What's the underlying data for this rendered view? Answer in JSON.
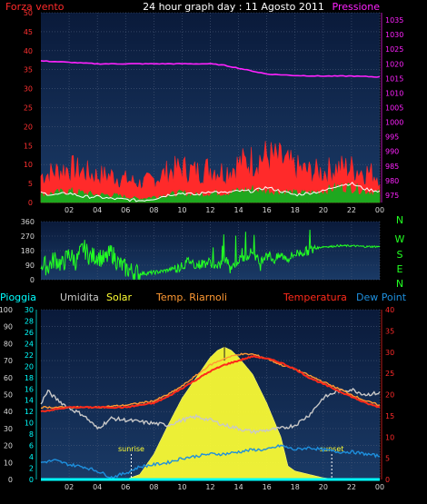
{
  "header": {
    "left_label": "Forza vento",
    "title": "24 hour graph day : 11 Agosto 2011",
    "right_label": "Pressione"
  },
  "colors": {
    "background": "#000000",
    "plot_bg_top": "#0a1a3a",
    "plot_bg_bottom": "#1a3a66",
    "grid": "#4a5a78",
    "wind_gust": "#ff2a2a",
    "wind_avg": "#1fa81f",
    "wind_line": "#ffffff",
    "pressure": "#ff22ff",
    "direction": "#22ff22",
    "rain": "#00ffff",
    "humidity": "#c8c8c8",
    "solar": "#ffff33",
    "temp_probe": "#ff9933",
    "temperature": "#ff2a1a",
    "dew_point": "#1e8fdd",
    "sun_marker": "#ffffff"
  },
  "chart_data": [
    {
      "type": "line",
      "name": "wind-pressure",
      "x_ticks": [
        "02",
        "04",
        "06",
        "08",
        "10",
        "12",
        "14",
        "16",
        "18",
        "20",
        "22",
        "00"
      ],
      "y_left_ticks": [
        0,
        5,
        10,
        15,
        20,
        25,
        30,
        35,
        40,
        45,
        50
      ],
      "y_left_range": [
        0,
        50
      ],
      "y_right_ticks": [
        975,
        980,
        985,
        990,
        995,
        1000,
        1005,
        1010,
        1015,
        1020,
        1025,
        1030,
        1035
      ],
      "y_right_range": [
        972.5,
        1037.5
      ],
      "x_range": [
        0,
        24
      ],
      "grid": true,
      "series": [
        {
          "key": "gust_upper",
          "axis": "left",
          "x": [
            0,
            1,
            2,
            3,
            4,
            5,
            6,
            7,
            8,
            9,
            10,
            11,
            12,
            13,
            14,
            15,
            16,
            17,
            18,
            19,
            20,
            21,
            22,
            23,
            24
          ],
          "y": [
            7,
            8,
            9,
            8,
            7,
            7,
            6,
            5,
            6,
            8,
            9,
            8,
            9,
            8,
            10,
            11,
            12,
            11,
            9,
            8,
            8,
            9,
            9,
            8,
            7
          ]
        },
        {
          "key": "avg_upper",
          "axis": "left",
          "x": [
            0,
            1,
            2,
            3,
            4,
            5,
            6,
            7,
            8,
            9,
            10,
            11,
            12,
            13,
            14,
            15,
            16,
            17,
            18,
            19,
            20,
            21,
            22,
            23,
            24
          ],
          "y": [
            2,
            2.5,
            3,
            2.5,
            2,
            2,
            1.5,
            1,
            1.5,
            2,
            2.5,
            2,
            2.5,
            2.5,
            3,
            3.5,
            3,
            3,
            2.5,
            2.5,
            3,
            4,
            4,
            3,
            2.5
          ]
        },
        {
          "key": "wind_speed",
          "axis": "left",
          "x": [
            0,
            1,
            2,
            3,
            4,
            5,
            6,
            7,
            8,
            9,
            10,
            11,
            12,
            13,
            14,
            15,
            16,
            17,
            18,
            19,
            20,
            21,
            22,
            23,
            24
          ],
          "y": [
            2.5,
            2,
            2.5,
            1.5,
            1.5,
            1,
            0.8,
            0.5,
            1,
            2,
            2.5,
            2,
            3,
            2.5,
            3,
            3,
            4,
            3,
            2,
            2.5,
            3,
            4.5,
            5,
            3.5,
            3
          ]
        },
        {
          "name": "Pressione",
          "key": "pressure",
          "axis": "right",
          "x": [
            0,
            2,
            4,
            6,
            8,
            10,
            12,
            13,
            14,
            15,
            16,
            18,
            20,
            22,
            24
          ],
          "y": [
            1021,
            1020.5,
            1020,
            1020,
            1020,
            1020,
            1020,
            1019.5,
            1018.5,
            1017.5,
            1016.5,
            1016,
            1015.8,
            1015.8,
            1015.5
          ]
        }
      ]
    },
    {
      "type": "line",
      "name": "wind-direction",
      "x_ticks": [],
      "y_left_ticks": [
        0,
        90,
        180,
        270,
        360
      ],
      "y_left_range": [
        0,
        360
      ],
      "x_range": [
        0,
        24
      ],
      "compass_labels": [
        "N",
        "W",
        "S",
        "E",
        "N"
      ],
      "grid": true,
      "series": [
        {
          "key": "direction",
          "axis": "left",
          "x": [
            0,
            0.5,
            1,
            1.5,
            2,
            2.5,
            3,
            3.5,
            4,
            4.5,
            5,
            5.5,
            6,
            6.5,
            7,
            7.5,
            8,
            8.5,
            9,
            9.5,
            10,
            10.5,
            11,
            11.5,
            12,
            12.5,
            13,
            13.5,
            14,
            14.5,
            15,
            15.5,
            16,
            16.5,
            17,
            17.5,
            18,
            18.5,
            19,
            19.5,
            20,
            20.5,
            21,
            22,
            23,
            24
          ],
          "y": [
            100,
            80,
            130,
            90,
            160,
            110,
            200,
            140,
            150,
            120,
            170,
            100,
            70,
            50,
            40,
            40,
            45,
            50,
            60,
            70,
            80,
            120,
            90,
            100,
            110,
            70,
            130,
            80,
            120,
            140,
            180,
            100,
            170,
            120,
            150,
            130,
            160,
            170,
            180,
            195,
            205,
            205,
            210,
            210,
            205,
            205
          ]
        }
      ]
    },
    {
      "type": "area",
      "name": "weather",
      "legend": [
        "Pioggia",
        "Umidita",
        "Solar",
        "Temp. Riarnoli",
        "Temperatura",
        "Dew Point"
      ],
      "x_ticks": [
        "02",
        "04",
        "06",
        "08",
        "10",
        "12",
        "14",
        "16",
        "18",
        "20",
        "22",
        "00"
      ],
      "y_left_ticks": [
        0,
        10,
        20,
        30,
        40,
        50,
        60,
        70,
        80,
        90,
        100
      ],
      "y_left_range": [
        0,
        100
      ],
      "y_mid_ticks": [
        0,
        2,
        4,
        6,
        8,
        10,
        12,
        14,
        16,
        18,
        20,
        22,
        24,
        26,
        28,
        30
      ],
      "y_mid_range": [
        0,
        30
      ],
      "y_right_ticks": [
        0,
        5,
        10,
        15,
        20,
        25,
        30,
        35,
        40
      ],
      "y_right_range": [
        0,
        40
      ],
      "x_range": [
        0,
        24
      ],
      "grid": true,
      "markers": [
        {
          "label": "sunrise",
          "x": 6.4
        },
        {
          "label": "sunset",
          "x": 20.6
        }
      ],
      "series": [
        {
          "name": "Umidita",
          "key": "humidity",
          "axis": "left",
          "x": [
            0,
            0.5,
            1,
            2,
            3,
            4,
            5,
            6,
            7,
            8,
            9,
            10,
            11,
            12,
            13,
            14,
            15,
            16,
            17,
            18,
            19,
            20,
            21,
            22,
            23,
            24
          ],
          "y": [
            45,
            52,
            48,
            42,
            38,
            30,
            36,
            35,
            34,
            33,
            32,
            35,
            37,
            35,
            32,
            30,
            28,
            29,
            30,
            32,
            38,
            48,
            52,
            53,
            50,
            51
          ]
        },
        {
          "name": "Solar",
          "key": "solar",
          "axis": "left",
          "x": [
            0,
            6,
            7,
            8,
            9,
            10,
            11,
            12,
            12.5,
            13,
            13.5,
            14,
            15,
            16,
            17,
            17.5,
            18,
            19,
            20,
            21,
            22,
            23,
            24
          ],
          "y": [
            0,
            0,
            3,
            15,
            32,
            48,
            60,
            72,
            76,
            78,
            76,
            72,
            62,
            45,
            25,
            8,
            5,
            3,
            1,
            0,
            0,
            0,
            0
          ]
        },
        {
          "name": "Temp. Riarnoli",
          "key": "temp_probe",
          "axis": "right",
          "x": [
            0,
            2,
            4,
            6,
            7,
            8,
            9,
            10,
            11,
            12,
            13,
            14,
            15,
            16,
            17,
            18,
            19,
            20,
            21,
            22,
            23,
            24
          ],
          "y": [
            17,
            17,
            17,
            17.5,
            18,
            18.5,
            20,
            22,
            24.5,
            27,
            28.5,
            29.5,
            29.5,
            28.5,
            27,
            26,
            24.5,
            23,
            21.5,
            20,
            18.5,
            17.5
          ]
        },
        {
          "name": "Temperatura",
          "key": "temperature",
          "axis": "right",
          "x": [
            0,
            2,
            4,
            6,
            7,
            8,
            9,
            10,
            11,
            12,
            13,
            14,
            15,
            16,
            17,
            18,
            19,
            20,
            21,
            22,
            23,
            24
          ],
          "y": [
            16,
            17,
            17,
            17,
            17.5,
            18,
            19.5,
            21.5,
            23.5,
            25.5,
            27,
            28,
            29,
            28.5,
            27.5,
            26,
            24,
            22.5,
            21,
            19.5,
            18,
            17
          ]
        },
        {
          "name": "Dew Point",
          "key": "dew_point",
          "axis": "right",
          "x": [
            0,
            1,
            2,
            3,
            4,
            5,
            6,
            7,
            8,
            9,
            10,
            11,
            12,
            13,
            14,
            15,
            16,
            17,
            18,
            19,
            20,
            21,
            22,
            23,
            24
          ],
          "y": [
            4,
            4.5,
            3.5,
            3,
            2,
            0.5,
            1.5,
            3,
            3.5,
            4,
            5,
            5.5,
            6,
            6,
            6.5,
            7,
            7,
            8,
            7,
            7.5,
            7,
            6.5,
            6.5,
            6,
            5.5
          ]
        },
        {
          "name": "Pioggia",
          "key": "rain",
          "axis": "mid",
          "x": [
            0,
            24
          ],
          "y": [
            0,
            0
          ]
        }
      ]
    }
  ]
}
